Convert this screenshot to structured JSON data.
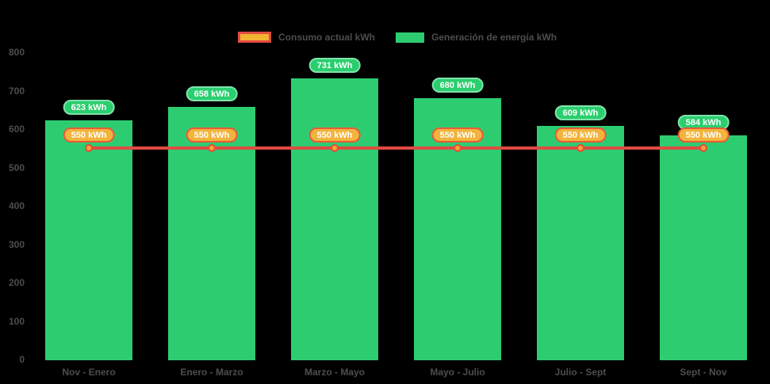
{
  "legend": {
    "items": [
      {
        "label": "Consumo actual kWh",
        "swatch": "line-swatch",
        "fill": "#f0b431",
        "border": "#e14b42"
      },
      {
        "label": "Generación de energía kWh",
        "swatch": "bar-swatch",
        "fill": "#2ecc71"
      }
    ]
  },
  "axes": {
    "y_ticks": [
      "800",
      "700",
      "600",
      "500",
      "400",
      "300",
      "200",
      "100",
      "0"
    ],
    "y_tick_values": [
      800,
      700,
      600,
      500,
      400,
      300,
      200,
      100,
      0
    ],
    "x_labels": [
      "Nov - Enero",
      "Enero - Marzo",
      "Marzo - Mayo",
      "Mayo - Julio",
      "Julio - Sept",
      "Sept - Nov"
    ]
  },
  "chart_data": {
    "type": "bar",
    "title": "",
    "categories": [
      "Nov - Enero",
      "Enero - Marzo",
      "Marzo - Mayo",
      "Mayo - Julio",
      "Julio - Sept",
      "Sept - Nov"
    ],
    "series": [
      {
        "name": "Generación de energía kWh",
        "type": "bar",
        "color": "#2ecc71",
        "values": [
          623,
          658,
          731,
          680,
          609,
          584
        ],
        "point_labels": [
          "623 kWh",
          "658 kWh",
          "731 kWh",
          "680 kWh",
          "609 kWh",
          "584 kWh"
        ]
      },
      {
        "name": "Consumo actual kWh",
        "type": "line",
        "color": "#e14b42",
        "point_color": "#f2a62e",
        "values": [
          550,
          550,
          550,
          550,
          550,
          550
        ],
        "point_labels": [
          "550 kWh",
          "550 kWh",
          "550 kWh",
          "550 kWh",
          "550 kWh",
          "550 kWh"
        ]
      }
    ],
    "ylim": [
      0,
      800
    ],
    "y_tick_step": 100,
    "grid": false,
    "legend_position": "top",
    "background": "#000000"
  }
}
